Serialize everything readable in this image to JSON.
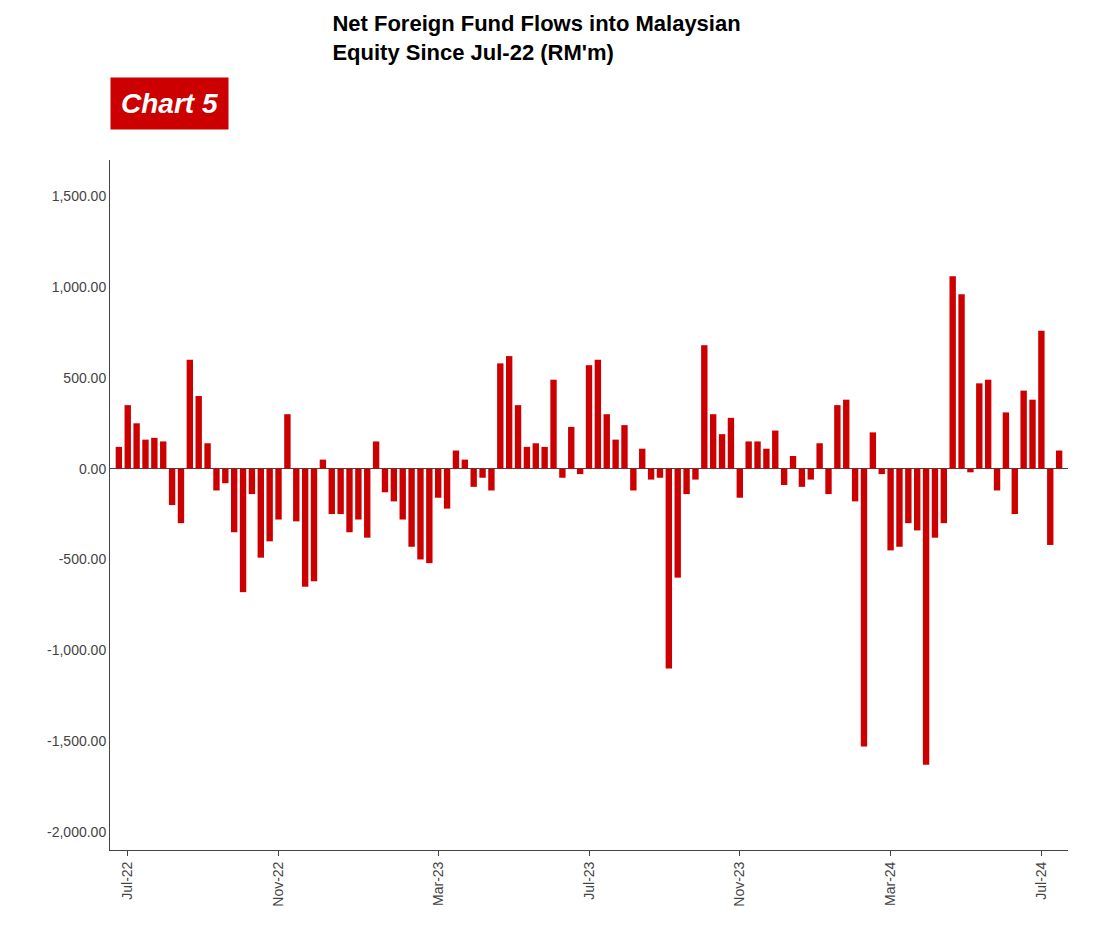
{
  "chart_data": {
    "type": "bar",
    "title": "Net Foreign Fund Flows into Malaysian\nEquity Since Jul-22 (RM'm)",
    "annotations": [
      "Chart 5"
    ],
    "categories": [
      null,
      "Jul-22",
      null,
      null,
      null,
      null,
      null,
      null,
      null,
      null,
      null,
      null,
      null,
      null,
      null,
      null,
      null,
      null,
      "Nov-22",
      null,
      null,
      null,
      null,
      null,
      null,
      null,
      null,
      null,
      null,
      null,
      null,
      null,
      null,
      null,
      null,
      null,
      "Mar-23",
      null,
      null,
      null,
      null,
      null,
      null,
      null,
      null,
      null,
      null,
      null,
      null,
      null,
      null,
      null,
      null,
      "Jul-23",
      null,
      null,
      null,
      null,
      null,
      null,
      null,
      null,
      null,
      null,
      null,
      null,
      null,
      null,
      null,
      null,
      "Nov-23",
      null,
      null,
      null,
      null,
      null,
      null,
      null,
      null,
      null,
      null,
      null,
      null,
      null,
      null,
      null,
      null,
      "Mar-24",
      null,
      null,
      null,
      null,
      null,
      null,
      null,
      null,
      null,
      null,
      null,
      null,
      null,
      null,
      null,
      null,
      "Jul-24",
      null,
      null
    ],
    "values": [
      120,
      350,
      250,
      160,
      170,
      150,
      -200,
      -300,
      600,
      400,
      140,
      -120,
      -80,
      -350,
      -680,
      -140,
      -490,
      -400,
      -280,
      300,
      -290,
      -650,
      -620,
      50,
      -250,
      -250,
      -350,
      -280,
      -380,
      150,
      -130,
      -180,
      -280,
      -430,
      -500,
      -520,
      -160,
      -220,
      100,
      50,
      -100,
      -50,
      -120,
      580,
      620,
      350,
      120,
      140,
      120,
      490,
      -50,
      230,
      -30,
      570,
      600,
      300,
      160,
      240,
      -120,
      110,
      -60,
      -50,
      -1100,
      -600,
      -140,
      -60,
      680,
      300,
      190,
      280,
      -160,
      150,
      150,
      110,
      210,
      -90,
      70,
      -100,
      -60,
      140,
      -140,
      350,
      380,
      -180,
      -1530,
      200,
      -30,
      -450,
      -430,
      -300,
      -340,
      -1630,
      -380,
      -300,
      1060,
      960,
      -20,
      470,
      490,
      -120,
      310,
      -250,
      430,
      380,
      760,
      -420,
      100
    ],
    "color": "#cc0000",
    "ylim": [
      -2100,
      1700
    ],
    "yticks": [
      {
        "value": -2000,
        "label": "-2,000.00"
      },
      {
        "value": -1500,
        "label": "-1,500.00"
      },
      {
        "value": -1000,
        "label": "-1,000.00"
      },
      {
        "value": -500,
        "label": "-500.00"
      },
      {
        "value": 0,
        "label": "0.00"
      },
      {
        "value": 500,
        "label": "500.00"
      },
      {
        "value": 1000,
        "label": "1,000.00"
      },
      {
        "value": 1500,
        "label": "1,500.00"
      }
    ],
    "grid": false
  }
}
